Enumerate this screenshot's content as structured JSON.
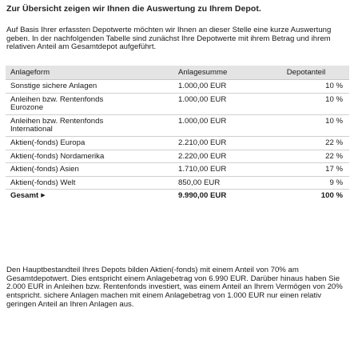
{
  "title": "Zur Übersicht zeigen wir Ihnen die Auswertung zu Ihrem Depot.",
  "intro": "Auf Basis Ihrer erfassten Depotwerte möchten wir Ihnen an dieser Stelle eine kurze Auswertung geben. In der nachfolgenden Tabelle sind zunächst Ihre Depotwerte mit ihrem Betrag und ihrem relativen Anteil am Gesamtdepot aufgeführt.",
  "table": {
    "headers": [
      "Anlageform",
      "Anlagesumme",
      "Depotanteil"
    ],
    "rows": [
      {
        "form_line1": "Sonstige sichere Anlagen",
        "form_line2": "",
        "sum": "1.000,00 EUR",
        "share": "10 %"
      },
      {
        "form_line1": "Anleihen bzw. Rentenfonds",
        "form_line2": "Eurozone",
        "sum": "1.000,00 EUR",
        "share": "10 %"
      },
      {
        "form_line1": "Anleihen bzw. Rentenfonds",
        "form_line2": "International",
        "sum": "1.000,00 EUR",
        "share": "10 %"
      },
      {
        "form_line1": "Aktien(-fonds) Europa",
        "form_line2": "",
        "sum": "2.210,00 EUR",
        "share": "22 %"
      },
      {
        "form_line1": "Aktien(-fonds) Nordamerika",
        "form_line2": "",
        "sum": "2.220,00 EUR",
        "share": "22 %"
      },
      {
        "form_line1": "Aktien(-fonds) Asien",
        "form_line2": "",
        "sum": "1.710,00 EUR",
        "share": "17 %"
      },
      {
        "form_line1": "Aktien(-fonds) Welt",
        "form_line2": "",
        "sum": "850,00 EUR",
        "share": "9 %"
      }
    ],
    "total": {
      "label": "Gesamt",
      "sum": "9.990,00 EUR",
      "share": "100 %"
    }
  },
  "summary": "Den Hauptbestandteil Ihres Depots bilden Aktien(-fonds) mit einem Anteil von 70% am Gesamtdepotwert. Dies entspricht einem Anlagebetrag von 6.990 EUR. Darüber hinaus haben Sie 2.000 EUR in Anleihen bzw. Rentenfonds investiert, was einem Anteil an Ihrem Vermögen von 20% entspricht. sichere Anlagen machen mit einem Anlagebetrag von 1.000 EUR nur einen relativ geringen Anteil an Ihren Anlagen aus."
}
